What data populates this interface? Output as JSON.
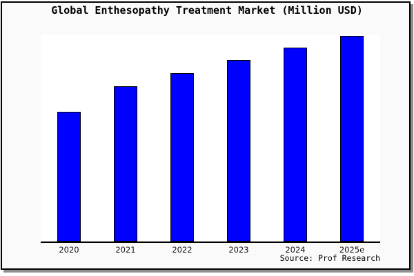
{
  "title": "Global Enthesopathy Treatment Market (Million USD)",
  "source": "Source: Prof Research",
  "colors": {
    "bar_fill": "#0000ff",
    "bar_edge": "#000000",
    "canvas_background": "#fafafa",
    "plot_background": "#ffffff",
    "axis_line": "#000000",
    "frame_border": "#000000",
    "frame_shadow": "#8f8f8f"
  },
  "chart_data": {
    "type": "bar",
    "title": "Global Enthesopathy Treatment Market (Million USD)",
    "categories": [
      "2020",
      "2021",
      "2022",
      "2023",
      "2024",
      "2025e"
    ],
    "values": [
      63,
      75.3,
      81.7,
      88,
      94,
      100
    ],
    "xlabel": "",
    "ylabel": "",
    "ylim": [
      0,
      100.5
    ],
    "grid": false,
    "legend": false,
    "y_axis_tick_labels_visible": false,
    "bar_color": "#0000ff",
    "bar_edge_color": "#000000",
    "source_annotation": "Source: Prof Research"
  }
}
